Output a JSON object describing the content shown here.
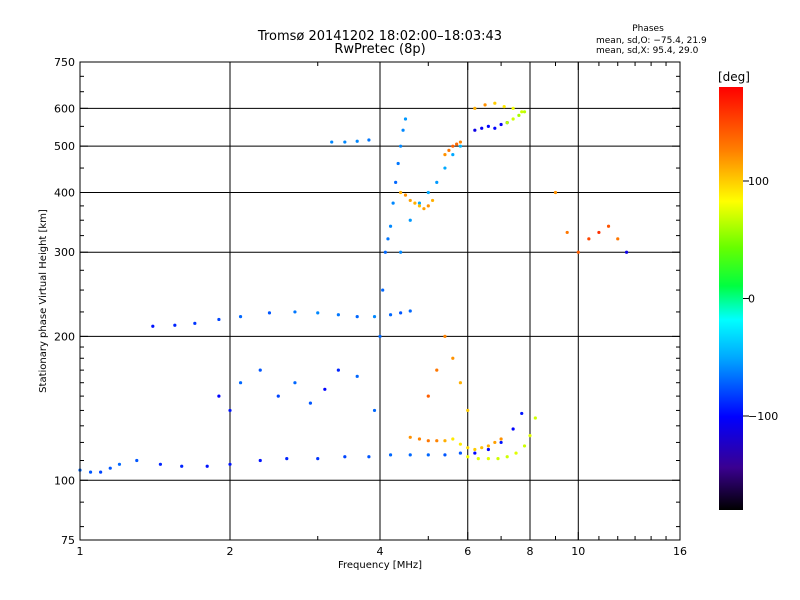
{
  "chart_data": {
    "type": "scatter",
    "title": "Tromsø 20141202 18:02:00–18:03:43",
    "subtitle": "RwPretec (8p)",
    "xlabel": "Frequency [MHz]",
    "ylabel": "Stationary phase Virtual Height [km]",
    "x_scale": "log",
    "y_scale": "log",
    "xlim": [
      1,
      16
    ],
    "ylim": [
      75,
      750
    ],
    "grid": true,
    "x_ticks": [
      1,
      2,
      4,
      6,
      8,
      10,
      16
    ],
    "x_tick_labels": [
      "1",
      "2",
      "4",
      "6",
      "8",
      "10",
      "16"
    ],
    "y_ticks": [
      75,
      100,
      200,
      300,
      400,
      500,
      600,
      750
    ],
    "y_tick_labels": [
      "75",
      "100",
      "200",
      "300",
      "400",
      "500",
      "600",
      "750"
    ],
    "phases_box": {
      "title": "Phases",
      "line1": "mean, sd,O: −75.4, 21.9",
      "line2": "mean, sd,X:  95.4, 29.0"
    },
    "colorbar": {
      "label": "[deg]",
      "min": -180,
      "max": 180,
      "ticks": [
        100,
        0,
        -100
      ],
      "tick_labels": [
        "100",
        "0",
        "−100"
      ],
      "colormap": "rainbow"
    },
    "series": [
      {
        "x": [
          1.0,
          1.05,
          1.1,
          1.15,
          1.2,
          1.3,
          1.45,
          1.6,
          1.8,
          2.0,
          2.3,
          2.6,
          3.0,
          3.4,
          3.8,
          4.2,
          4.6,
          5.0,
          5.4,
          5.8,
          6.2,
          6.6,
          7.0,
          7.4,
          7.7
        ],
        "y": [
          105,
          104,
          104,
          106,
          108,
          110,
          108,
          107,
          107,
          108,
          110,
          111,
          111,
          112,
          112,
          113,
          113,
          113,
          113,
          114,
          114,
          116,
          120,
          128,
          138
        ],
        "phase": [
          -70,
          -75,
          -80,
          -75,
          -70,
          -75,
          -90,
          -90,
          -95,
          -95,
          -95,
          -90,
          -85,
          -80,
          -75,
          -70,
          -70,
          -70,
          -75,
          -75,
          -100,
          -100,
          -95,
          -100,
          -95
        ]
      },
      {
        "x": [
          1.4,
          1.55,
          1.7,
          1.9,
          2.1,
          2.4,
          2.7,
          3.0,
          3.3,
          3.6,
          3.9,
          4.2,
          4.4,
          4.6
        ],
        "y": [
          210,
          211,
          213,
          217,
          220,
          224,
          225,
          224,
          222,
          220,
          220,
          222,
          224,
          226
        ],
        "phase": [
          -95,
          -90,
          -85,
          -80,
          -70,
          -75,
          -65,
          -60,
          -65,
          -70,
          -60,
          -70,
          -75,
          -70
        ]
      },
      {
        "x": [
          3.2,
          3.4,
          3.6,
          3.8,
          3.9,
          4.0,
          4.05,
          4.1,
          4.15,
          4.2,
          4.25,
          4.3,
          4.35,
          4.4,
          4.45,
          4.5
        ],
        "y": [
          510,
          510,
          512,
          515,
          140,
          200,
          250,
          300,
          320,
          340,
          380,
          420,
          460,
          500,
          540,
          570
        ],
        "phase": [
          -60,
          -60,
          -60,
          -65,
          -70,
          -70,
          -70,
          -70,
          -65,
          -60,
          -60,
          -70,
          -65,
          -60,
          -60,
          -55
        ]
      },
      {
        "x": [
          4.4,
          4.6,
          4.8,
          5.0,
          5.2,
          5.4,
          5.6,
          5.8
        ],
        "y": [
          300,
          350,
          380,
          400,
          420,
          450,
          480,
          500
        ],
        "phase": [
          -60,
          -55,
          -50,
          -50,
          -55,
          -50,
          -50,
          -45
        ]
      },
      {
        "x": [
          4.4,
          4.5,
          4.6,
          4.7,
          4.8,
          4.9,
          5.0,
          5.1
        ],
        "y": [
          400,
          395,
          385,
          380,
          375,
          370,
          375,
          385
        ],
        "phase": [
          110,
          120,
          115,
          110,
          105,
          115,
          120,
          110
        ]
      },
      {
        "x": [
          4.6,
          4.8,
          5.0,
          5.2,
          5.4,
          5.6,
          5.8,
          6.0,
          6.2,
          6.4,
          6.6,
          6.8,
          7.0
        ],
        "y": [
          123,
          122,
          121,
          121,
          121,
          122,
          119,
          117,
          116,
          117,
          118,
          120,
          122
        ],
        "phase": [
          120,
          125,
          130,
          125,
          110,
          90,
          90,
          95,
          100,
          105,
          110,
          115,
          120
        ]
      },
      {
        "x": [
          5.4,
          5.5,
          5.6,
          5.7,
          5.8
        ],
        "y": [
          480,
          490,
          500,
          505,
          510
        ],
        "phase": [
          120,
          130,
          140,
          135,
          125
        ]
      },
      {
        "x": [
          6.2,
          6.4,
          6.6,
          6.8,
          7.0,
          7.2
        ],
        "y": [
          540,
          545,
          550,
          545,
          555,
          560
        ],
        "phase": [
          -110,
          -105,
          -100,
          -100,
          -105,
          -110
        ]
      },
      {
        "x": [
          6.2,
          6.5,
          6.8,
          7.1,
          7.4,
          7.7
        ],
        "y": [
          600,
          610,
          615,
          605,
          600,
          590
        ],
        "phase": [
          110,
          120,
          100,
          90,
          80,
          70
        ]
      },
      {
        "x": [
          6.0,
          6.3,
          6.6,
          6.9,
          7.2,
          7.5,
          7.8,
          8.0,
          8.2
        ],
        "y": [
          112,
          111,
          111,
          111,
          112,
          114,
          118,
          124,
          135
        ],
        "phase": [
          80,
          75,
          75,
          70,
          70,
          75,
          70,
          75,
          70
        ]
      },
      {
        "x": [
          7.2,
          7.4,
          7.6,
          7.8
        ],
        "y": [
          560,
          570,
          580,
          590
        ],
        "phase": [
          65,
          70,
          60,
          65
        ]
      },
      {
        "x": [
          9.0,
          9.5,
          10.0,
          10.5,
          11.0,
          11.5,
          12.0,
          12.5
        ],
        "y": [
          400,
          330,
          300,
          320,
          330,
          340,
          320,
          300
        ],
        "phase": [
          120,
          130,
          140,
          150,
          160,
          145,
          130,
          -110
        ]
      },
      {
        "x": [
          1.9,
          2.0,
          2.1,
          2.3,
          2.5,
          2.7,
          2.9,
          3.1,
          3.3,
          3.6
        ],
        "y": [
          150,
          140,
          160,
          170,
          150,
          160,
          145,
          155,
          170,
          165
        ],
        "phase": [
          -100,
          -95,
          -70,
          -75,
          -80,
          -70,
          -75,
          -100,
          -90,
          -70
        ]
      },
      {
        "x": [
          5.0,
          5.2,
          5.4,
          5.6,
          5.8,
          6.0
        ],
        "y": [
          150,
          170,
          200,
          180,
          160,
          140
        ],
        "phase": [
          140,
          130,
          125,
          120,
          110,
          100
        ]
      }
    ]
  }
}
